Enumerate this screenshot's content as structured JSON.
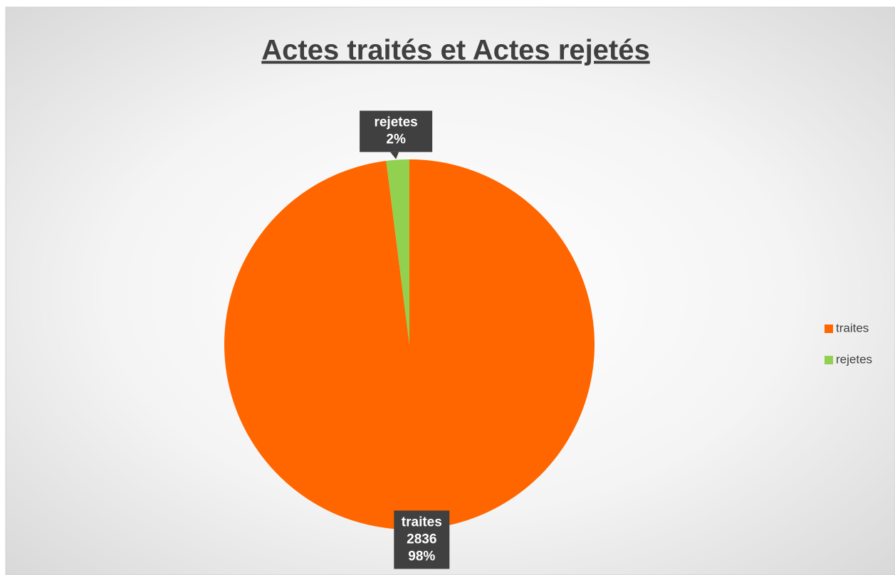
{
  "chart_data": {
    "type": "pie",
    "title": "Actes traités et Actes rejetés",
    "categories": [
      "traites",
      "rejetes"
    ],
    "values": [
      2836,
      58
    ],
    "percent_labels": [
      "98%",
      "2%"
    ],
    "colors": [
      "#ff6600",
      "#92d050"
    ],
    "legend": "right"
  }
}
